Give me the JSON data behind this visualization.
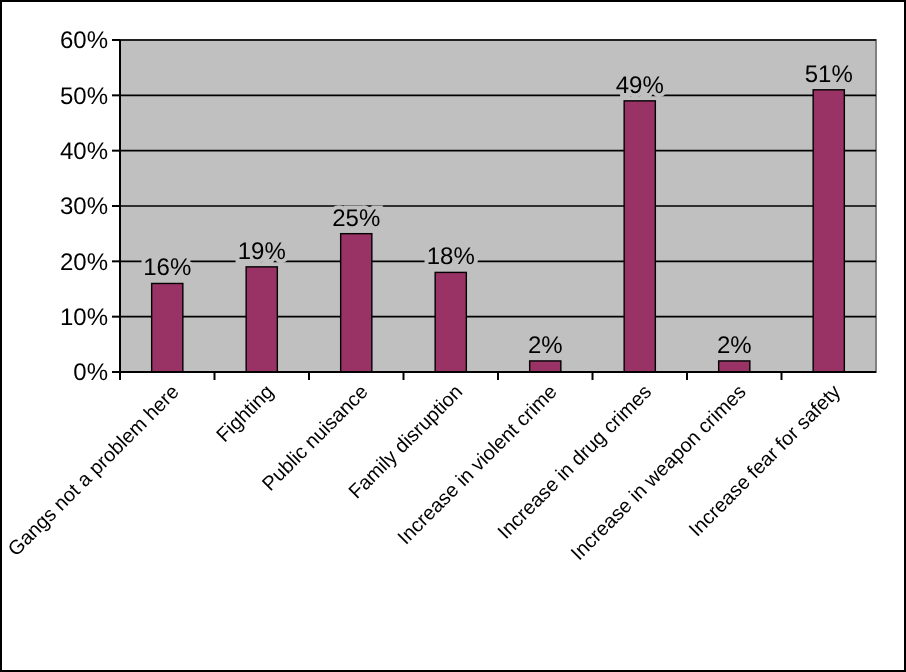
{
  "chart_data": {
    "type": "bar",
    "categories": [
      "Gangs not a problem here",
      "Fighting",
      "Public nuisance",
      "Family disruption",
      "Increase in violent crime",
      "Increase in drug crimes",
      "Increase in weapon crimes",
      "Increase fear for safety"
    ],
    "values": [
      16,
      19,
      25,
      18,
      2,
      49,
      2,
      51
    ],
    "value_labels": [
      "16%",
      "19%",
      "25%",
      "18%",
      "2%",
      "49%",
      "2%",
      "51%"
    ],
    "color": "#993366",
    "ylim": [
      0,
      60
    ],
    "yticks": [
      {
        "value": 0,
        "label": "0%"
      },
      {
        "value": 10,
        "label": "10%"
      },
      {
        "value": 20,
        "label": "20%"
      },
      {
        "value": 30,
        "label": "30%"
      },
      {
        "value": 40,
        "label": "40%"
      },
      {
        "value": 50,
        "label": "50%"
      },
      {
        "value": 60,
        "label": "60%"
      }
    ],
    "grid": "y"
  }
}
